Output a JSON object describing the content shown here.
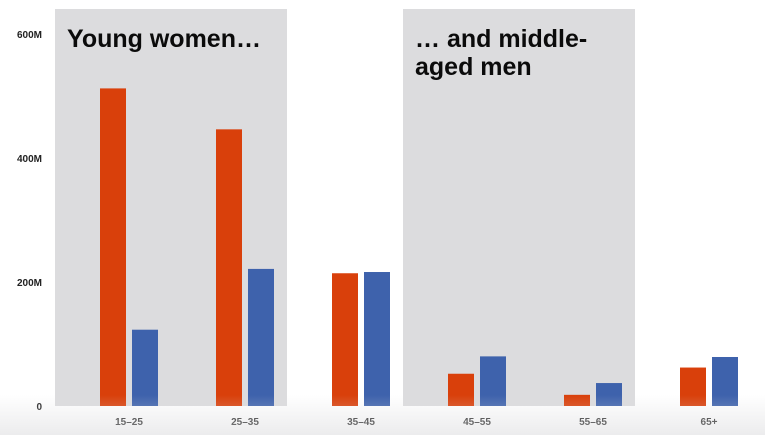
{
  "chart_data": {
    "type": "bar",
    "categories": [
      "15–25",
      "25–35",
      "35–45",
      "45–55",
      "55–65",
      "65+"
    ],
    "series": [
      {
        "color": "#d9400b",
        "values": [
          512,
          446,
          214,
          52,
          18,
          62
        ]
      },
      {
        "color": "#3e62ac",
        "values": [
          123,
          221,
          216,
          80,
          37,
          79
        ]
      }
    ],
    "ylim": [
      0,
      640
    ],
    "yticks": [
      {
        "value": 0,
        "label": "0"
      },
      {
        "value": 200,
        "label": "200M"
      },
      {
        "value": 400,
        "label": "400M"
      },
      {
        "value": 600,
        "label": "600M"
      }
    ],
    "highlight_bands": [
      {
        "from_category": 0,
        "to_category": 1,
        "lines": [
          "Young women…"
        ]
      },
      {
        "from_category": 3,
        "to_category": 4,
        "lines": [
          "… and middle-",
          "aged men"
        ]
      }
    ],
    "band_color": "#dcdcde",
    "grid": false,
    "legend": "none"
  }
}
